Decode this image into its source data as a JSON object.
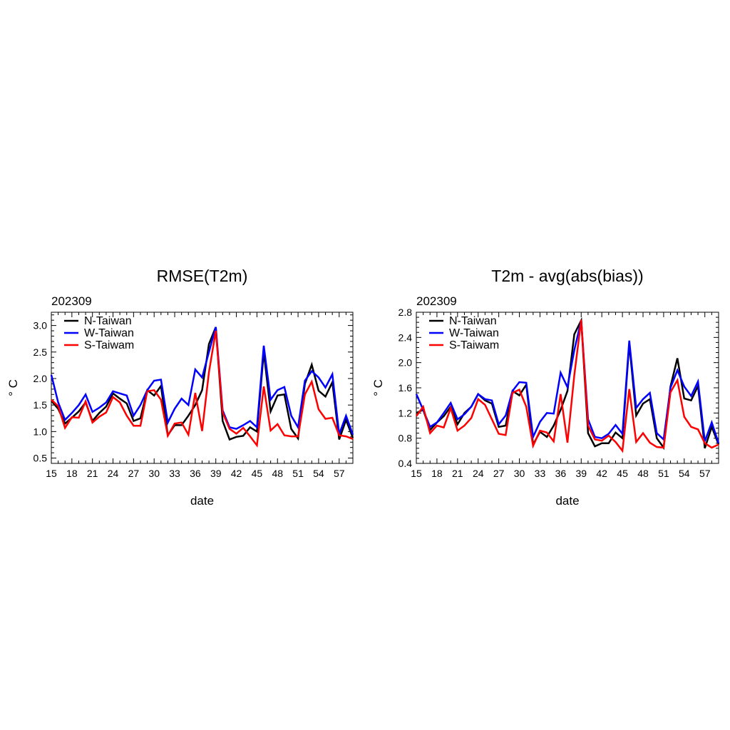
{
  "chart_data": [
    {
      "type": "line",
      "title": "RMSE(T2m)",
      "subtitle": "202309",
      "xlabel": "date",
      "ylabel": "° C",
      "xlim": [
        15,
        59
      ],
      "ylim": [
        0.4,
        3.25
      ],
      "x_ticks": [
        15,
        18,
        21,
        24,
        27,
        30,
        33,
        36,
        39,
        42,
        45,
        48,
        51,
        54,
        57
      ],
      "y_ticks": [
        0.5,
        1.0,
        1.5,
        2.0,
        2.5,
        3.0
      ],
      "y_tick_labels": [
        "0.5",
        "1.0",
        "1.5",
        "2.0",
        "2.5",
        "3.0"
      ],
      "grid": false,
      "legend_position": "top-left",
      "x": [
        15,
        16,
        17,
        18,
        19,
        20,
        21,
        22,
        23,
        24,
        25,
        26,
        27,
        28,
        29,
        30,
        31,
        32,
        33,
        34,
        35,
        36,
        37,
        38,
        39,
        40,
        41,
        42,
        43,
        44,
        45,
        46,
        47,
        48,
        49,
        50,
        51,
        52,
        53,
        54,
        55,
        56,
        57,
        58,
        59
      ],
      "series": [
        {
          "name": "N-Taiwan",
          "color": "#000000",
          "values": [
            1.58,
            1.43,
            1.15,
            1.26,
            1.38,
            1.55,
            1.2,
            1.35,
            1.47,
            1.72,
            1.62,
            1.53,
            1.2,
            1.25,
            1.78,
            1.68,
            1.86,
            0.93,
            1.12,
            1.12,
            1.3,
            1.5,
            1.78,
            2.65,
            2.97,
            1.2,
            0.85,
            0.9,
            0.92,
            1.08,
            1.0,
            2.5,
            1.38,
            1.68,
            1.7,
            1.05,
            0.87,
            1.9,
            2.26,
            1.77,
            1.66,
            1.93,
            0.85,
            1.22,
            0.88
          ]
        },
        {
          "name": "W-Taiwan",
          "color": "#0000ff",
          "values": [
            2.07,
            1.55,
            1.22,
            1.35,
            1.5,
            1.7,
            1.37,
            1.45,
            1.55,
            1.76,
            1.72,
            1.68,
            1.3,
            1.5,
            1.78,
            1.96,
            1.98,
            1.17,
            1.43,
            1.62,
            1.5,
            2.17,
            2.02,
            2.5,
            2.97,
            1.4,
            1.08,
            1.05,
            1.12,
            1.2,
            1.08,
            2.62,
            1.6,
            1.78,
            1.84,
            1.3,
            1.08,
            1.96,
            2.14,
            2.02,
            1.83,
            2.08,
            0.95,
            1.3,
            0.94
          ]
        },
        {
          "name": "S-Taiwam",
          "color": "#ff0000",
          "values": [
            1.6,
            1.48,
            1.07,
            1.27,
            1.26,
            1.57,
            1.17,
            1.28,
            1.36,
            1.65,
            1.55,
            1.3,
            1.11,
            1.11,
            1.76,
            1.78,
            1.6,
            0.92,
            1.15,
            1.17,
            0.94,
            1.73,
            1.01,
            2.12,
            2.9,
            1.36,
            1.05,
            0.96,
            1.07,
            0.91,
            0.74,
            1.85,
            1.02,
            1.14,
            0.93,
            0.91,
            0.91,
            1.7,
            1.94,
            1.42,
            1.24,
            1.26,
            0.93,
            0.91,
            0.86
          ]
        }
      ]
    },
    {
      "type": "line",
      "title": "T2m - avg(abs(bias))",
      "subtitle": "202309",
      "xlabel": "date",
      "ylabel": "° C",
      "xlim": [
        15,
        59
      ],
      "ylim": [
        0.4,
        2.8
      ],
      "x_ticks": [
        15,
        18,
        21,
        24,
        27,
        30,
        33,
        36,
        39,
        42,
        45,
        48,
        51,
        54,
        57
      ],
      "y_ticks": [
        0.4,
        0.8,
        1.2,
        1.6,
        2.0,
        2.4,
        2.8
      ],
      "y_tick_labels": [
        "0.4",
        "0.8",
        "1.2",
        "1.6",
        "2.0",
        "2.4",
        "2.8"
      ],
      "grid": false,
      "legend_position": "top-left",
      "x": [
        15,
        16,
        17,
        18,
        19,
        20,
        21,
        22,
        23,
        24,
        25,
        26,
        27,
        28,
        29,
        30,
        31,
        32,
        33,
        34,
        35,
        36,
        37,
        38,
        39,
        40,
        41,
        42,
        43,
        44,
        45,
        46,
        47,
        48,
        49,
        50,
        51,
        52,
        53,
        54,
        55,
        56,
        57,
        58,
        59
      ],
      "series": [
        {
          "name": "N-Taiwan",
          "color": "#000000",
          "values": [
            1.2,
            1.25,
            0.93,
            1.05,
            1.15,
            1.3,
            1.02,
            1.2,
            1.3,
            1.5,
            1.4,
            1.35,
            0.98,
            1.0,
            1.55,
            1.48,
            1.65,
            0.7,
            0.9,
            0.82,
            1.0,
            1.25,
            1.55,
            2.45,
            2.67,
            0.88,
            0.67,
            0.72,
            0.72,
            0.89,
            0.8,
            2.3,
            1.16,
            1.35,
            1.42,
            0.8,
            0.65,
            1.62,
            2.07,
            1.43,
            1.4,
            1.63,
            0.64,
            0.98,
            0.7
          ]
        },
        {
          "name": "W-Taiwan",
          "color": "#0000ff",
          "values": [
            1.5,
            1.25,
            0.98,
            1.05,
            1.2,
            1.36,
            1.1,
            1.18,
            1.3,
            1.5,
            1.42,
            1.4,
            1.02,
            1.16,
            1.55,
            1.69,
            1.68,
            0.82,
            1.06,
            1.2,
            1.19,
            1.84,
            1.61,
            2.2,
            2.67,
            1.1,
            0.82,
            0.8,
            0.87,
            1.01,
            0.87,
            2.35,
            1.28,
            1.42,
            1.52,
            0.88,
            0.78,
            1.6,
            1.88,
            1.62,
            1.47,
            1.7,
            0.75,
            1.05,
            0.72
          ]
        },
        {
          "name": "S-Taiwam",
          "color": "#ff0000",
          "values": [
            1.15,
            1.3,
            0.88,
            1.0,
            0.97,
            1.28,
            0.92,
            1.0,
            1.12,
            1.42,
            1.33,
            1.1,
            0.87,
            0.85,
            1.52,
            1.57,
            1.3,
            0.68,
            0.92,
            0.89,
            0.75,
            1.5,
            0.73,
            1.8,
            2.68,
            1.0,
            0.78,
            0.76,
            0.84,
            0.74,
            0.6,
            1.58,
            0.74,
            0.88,
            0.73,
            0.66,
            0.65,
            1.53,
            1.72,
            1.14,
            0.98,
            0.94,
            0.72,
            0.65,
            0.7
          ]
        }
      ]
    }
  ]
}
